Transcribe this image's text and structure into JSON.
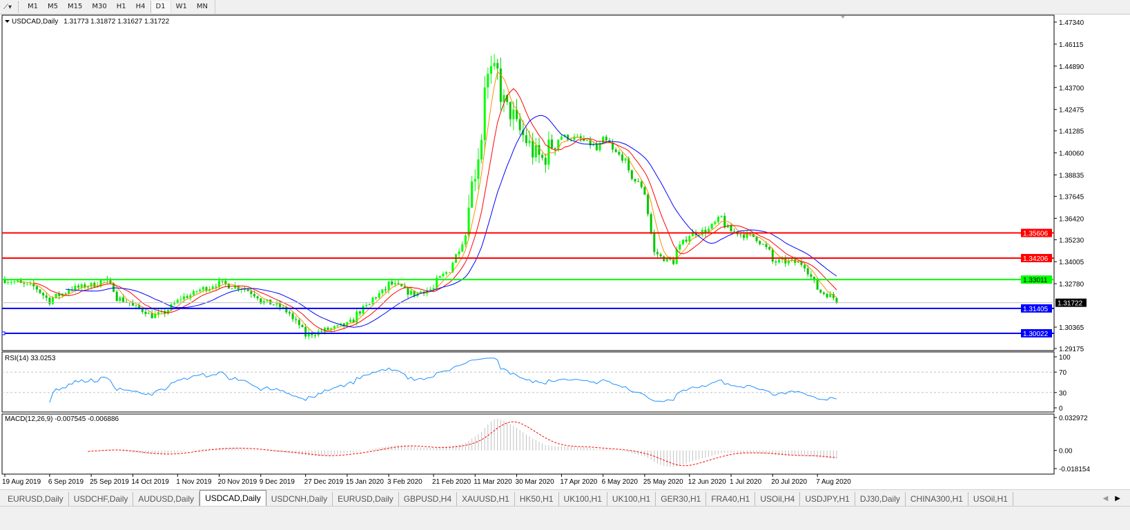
{
  "toolbar": {
    "tool_icon": "line-tool-icon",
    "timeframes": [
      "M1",
      "M5",
      "M15",
      "M30",
      "H1",
      "H4",
      "D1",
      "W1",
      "MN"
    ],
    "active_timeframe": "D1"
  },
  "chart": {
    "header": "USDCAD,Daily",
    "ohlc": "1.31773 1.31872 1.31627 1.31722",
    "price_ticks": [
      "1.47340",
      "1.46115",
      "1.44890",
      "1.43700",
      "1.42475",
      "1.41285",
      "1.40060",
      "1.38835",
      "1.37645",
      "1.36420",
      "1.35230",
      "1.34005",
      "1.32780",
      "1.30365",
      "1.29175"
    ],
    "horizontal_lines": [
      {
        "price": 1.35606,
        "label": "1.35606",
        "color": "#ff0000"
      },
      {
        "price": 1.34206,
        "label": "1.34206",
        "color": "#ff0000"
      },
      {
        "price": 1.33011,
        "label": "1.33011",
        "color": "#00ff00"
      },
      {
        "price": 1.31405,
        "label": "1.31405",
        "color": "#0000ff"
      },
      {
        "price": 1.30022,
        "label": "1.30022",
        "color": "#0000ff"
      }
    ],
    "bid": {
      "price": 1.31722,
      "label": "1.31722",
      "color": "#c0c0c0"
    },
    "date_labels": [
      "19 Aug 2019",
      "6 Sep 2019",
      "25 Sep 2019",
      "14 Oct 2019",
      "1 Nov 2019",
      "20 Nov 2019",
      "9 Dec 2019",
      "27 Dec 2019",
      "15 Jan 2020",
      "3 Feb 2020",
      "21 Feb 2020",
      "11 Mar 2020",
      "30 Mar 2020",
      "17 Apr 2020",
      "6 May 2020",
      "25 May 2020",
      "12 Jun 2020",
      "1 Jul 2020",
      "20 Jul 2020",
      "7 Aug 2020"
    ],
    "colors": {
      "bull": "#00ff00",
      "bear": "#00c800",
      "ma_fast": "#ff8c00",
      "ma_mid": "#ff0000",
      "ma_slow": "#0000ff"
    }
  },
  "rsi": {
    "label": "RSI(14) 33.0253",
    "ticks": [
      "100",
      "70",
      "30",
      "0"
    ],
    "color": "#1e90ff"
  },
  "macd": {
    "label": "MACD(12,26,9) -0.007545 -0.006886",
    "ticks": [
      "0.032972",
      "0.00",
      "-0.018154"
    ],
    "histogram_color": "#c0c0c0",
    "signal_color": "#ff0000"
  },
  "chart_data": {
    "type": "candlestick",
    "symbol": "USDCAD",
    "timeframe": "Daily",
    "ylim": [
      1.29175,
      1.4734
    ],
    "approx_close_waypoints": [
      [
        "19 Aug 2019",
        1.33
      ],
      [
        "2 Sep 2019",
        1.325
      ],
      [
        "6 Sep 2019",
        1.318
      ],
      [
        "16 Sep 2019",
        1.325
      ],
      [
        "25 Sep 2019",
        1.327
      ],
      [
        "1 Oct 2019",
        1.33
      ],
      [
        "7 Oct 2019",
        1.32
      ],
      [
        "14 Oct 2019",
        1.315
      ],
      [
        "22 Oct 2019",
        1.31
      ],
      [
        "28 Oct 2019",
        1.312
      ],
      [
        "1 Nov 2019",
        1.318
      ],
      [
        "13 Nov 2019",
        1.325
      ],
      [
        "20 Nov 2019",
        1.328
      ],
      [
        "2 Dec 2019",
        1.325
      ],
      [
        "9 Dec 2019",
        1.318
      ],
      [
        "17 Dec 2019",
        1.315
      ],
      [
        "25 Dec 2019",
        1.305
      ],
      [
        "27 Dec 2019",
        1.299
      ],
      [
        "6 Jan 2020",
        1.302
      ],
      [
        "15 Jan 2020",
        1.305
      ],
      [
        "23 Jan 2020",
        1.315
      ],
      [
        "3 Feb 2020",
        1.328
      ],
      [
        "13 Feb 2020",
        1.322
      ],
      [
        "21 Feb 2020",
        1.325
      ],
      [
        "2 Mar 2020",
        1.34
      ],
      [
        "6 Mar 2020",
        1.355
      ],
      [
        "11 Mar 2020",
        1.39
      ],
      [
        "16 Mar 2020",
        1.44
      ],
      [
        "18 Mar 2020",
        1.445
      ],
      [
        "20 Mar 2020",
        1.445
      ],
      [
        "25 Mar 2020",
        1.425
      ],
      [
        "30 Mar 2020",
        1.415
      ],
      [
        "3 Apr 2020",
        1.405
      ],
      [
        "9 Apr 2020",
        1.397
      ],
      [
        "17 Apr 2020",
        1.41
      ],
      [
        "27 Apr 2020",
        1.408
      ],
      [
        "4 May 2020",
        1.402
      ],
      [
        "6 May 2020",
        1.408
      ],
      [
        "14 May 2020",
        1.398
      ],
      [
        "20 May 2020",
        1.385
      ],
      [
        "25 May 2020",
        1.378
      ],
      [
        "28 May 2020",
        1.345
      ],
      [
        "5 Jun 2020",
        1.34
      ],
      [
        "12 Jun 2020",
        1.355
      ],
      [
        "22 Jun 2020",
        1.358
      ],
      [
        "26 Jun 2020",
        1.365
      ],
      [
        "1 Jul 2020",
        1.357
      ],
      [
        "13 Jul 2020",
        1.353
      ],
      [
        "20 Jul 2020",
        1.34
      ],
      [
        "28 Jul 2020",
        1.34
      ],
      [
        "3 Aug 2020",
        1.338
      ],
      [
        "7 Aug 2020",
        1.325
      ],
      [
        "12 Aug 2020",
        1.322
      ],
      [
        "17 Aug 2020",
        1.31722
      ]
    ],
    "rsi_levels": [
      70,
      30
    ],
    "rsi_range": [
      0,
      100
    ],
    "macd_range": [
      -0.018154,
      0.032972
    ]
  },
  "tabs": {
    "items": [
      "EURUSD,Daily",
      "USDCHF,Daily",
      "AUDUSD,Daily",
      "USDCAD,Daily",
      "USDCNH,Daily",
      "EURUSD,Daily",
      "GBPUSD,H4",
      "XAUUSD,H1",
      "HK50,H1",
      "UK100,H1",
      "UK100,H1",
      "GER30,H1",
      "FRA40,H1",
      "USOil,H4",
      "USDJPY,H1",
      "DJ30,Daily",
      "CHINA300,H1",
      "USOil,H1"
    ],
    "active": 3,
    "scroll_left": "◀",
    "scroll_right": "▶"
  }
}
